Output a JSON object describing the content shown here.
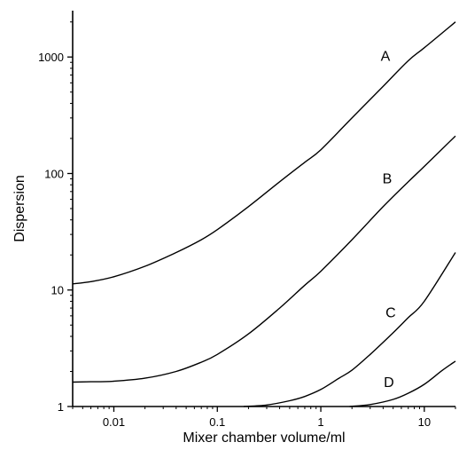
{
  "chart_data": {
    "type": "line",
    "title": "",
    "xlabel": "Mixer chamber volume/ml",
    "ylabel": "Dispersion",
    "xscale": "log",
    "yscale": "log",
    "xlim": [
      0.004,
      20
    ],
    "ylim": [
      1,
      2500
    ],
    "grid": false,
    "x_ticks": [
      {
        "value": 0.01,
        "label": "0.01"
      },
      {
        "value": 0.1,
        "label": "0.1"
      },
      {
        "value": 1,
        "label": "1"
      },
      {
        "value": 10,
        "label": "10"
      }
    ],
    "y_ticks": [
      {
        "value": 1,
        "label": "1"
      },
      {
        "value": 10,
        "label": "10"
      },
      {
        "value": 100,
        "label": "100"
      },
      {
        "value": 1000,
        "label": "1000"
      }
    ],
    "series": [
      {
        "name": "A",
        "x": [
          0.004,
          0.006,
          0.01,
          0.02,
          0.04,
          0.07,
          0.1,
          0.2,
          0.4,
          0.7,
          1,
          2,
          4,
          7,
          10,
          20
        ],
        "y": [
          11.3,
          11.8,
          13,
          16,
          21,
          27,
          33,
          52,
          85,
          125,
          160,
          300,
          560,
          930,
          1200,
          2000
        ]
      },
      {
        "name": "B",
        "x": [
          0.004,
          0.006,
          0.01,
          0.02,
          0.04,
          0.07,
          0.1,
          0.2,
          0.4,
          0.7,
          1,
          2,
          4,
          7,
          10,
          20
        ],
        "y": [
          1.62,
          1.63,
          1.65,
          1.75,
          2.0,
          2.4,
          2.8,
          4.2,
          7,
          11,
          14.5,
          27,
          52,
          85,
          115,
          210
        ]
      },
      {
        "name": "C",
        "x": [
          0.18,
          0.3,
          0.5,
          0.7,
          1,
          1.5,
          2,
          3,
          5,
          7,
          10,
          20
        ],
        "y": [
          1.0,
          1.03,
          1.12,
          1.22,
          1.4,
          1.75,
          2.05,
          2.8,
          4.3,
          5.8,
          8,
          21
        ]
      },
      {
        "name": "D",
        "x": [
          1.9,
          3,
          5,
          7,
          10,
          15,
          20
        ],
        "y": [
          1.0,
          1.04,
          1.15,
          1.3,
          1.55,
          2.05,
          2.45
        ]
      }
    ]
  }
}
